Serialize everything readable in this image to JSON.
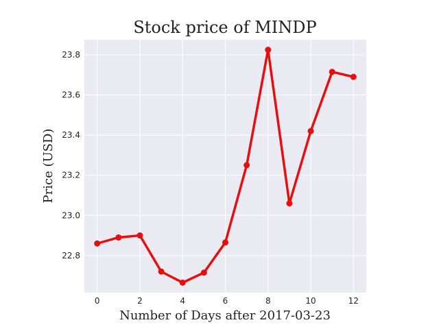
{
  "chart_data": {
    "type": "line",
    "title": "Stock price of MINDP",
    "xlabel": "Number of Days after 2017-03-23",
    "ylabel": "Price (USD)",
    "x": [
      0,
      1,
      2,
      3,
      4,
      5,
      6,
      7,
      8,
      9,
      10,
      11,
      12
    ],
    "series": [
      {
        "values": [
          22.86,
          22.89,
          22.9,
          22.72,
          22.665,
          22.715,
          22.865,
          23.25,
          23.825,
          23.06,
          23.42,
          23.715,
          23.69
        ]
      }
    ],
    "xlim": [
      -0.6,
      12.6
    ],
    "ylim": [
      22.615,
      23.875
    ],
    "xticks": [
      0,
      2,
      4,
      6,
      8,
      10,
      12
    ],
    "yticks": [
      22.8,
      23.0,
      23.2,
      23.4,
      23.6,
      23.8
    ],
    "xtick_labels": [
      "0",
      "2",
      "4",
      "6",
      "8",
      "10",
      "12"
    ],
    "ytick_labels": [
      "22.8",
      "23.0",
      "23.2",
      "23.4",
      "23.6",
      "23.8"
    ],
    "grid": true,
    "line_color": "#e80e0e",
    "background_color": "#eaeaf2",
    "grid_color": "#ffffff"
  }
}
